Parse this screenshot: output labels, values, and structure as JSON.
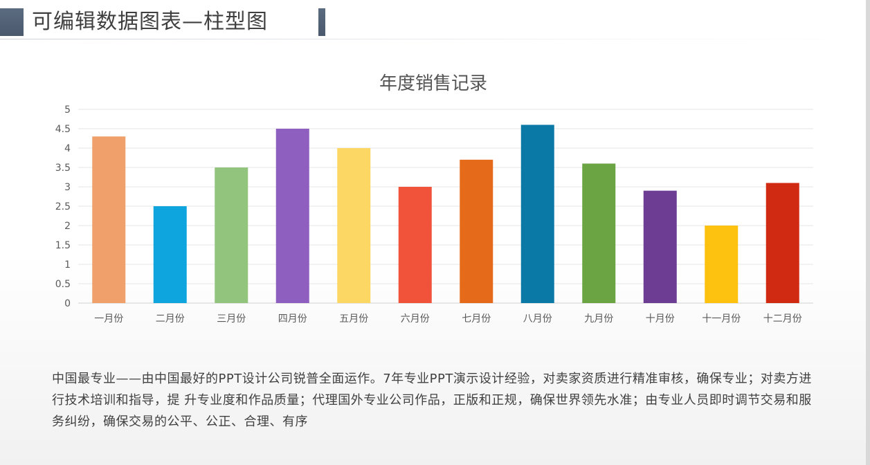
{
  "header": {
    "title": "可编辑数据图表—柱型图"
  },
  "chart_data": {
    "type": "bar",
    "title": "年度销售记录",
    "categories": [
      "一月份",
      "二月份",
      "三月份",
      "四月份",
      "五月份",
      "六月份",
      "七月份",
      "八月份",
      "九月份",
      "十月份",
      "十一月份",
      "十二月份"
    ],
    "values": [
      4.3,
      2.5,
      3.5,
      4.5,
      4.0,
      3.0,
      3.7,
      4.6,
      3.6,
      2.9,
      2.0,
      3.1
    ],
    "colors": [
      "#f0a06b",
      "#0ea5df",
      "#93c47d",
      "#8e5fbf",
      "#fdd764",
      "#f0533a",
      "#e56b1a",
      "#0b79a6",
      "#6ba443",
      "#6d3c93",
      "#fdc20f",
      "#d12a12"
    ],
    "yticks": [
      "0",
      "0.5",
      "1",
      "1.5",
      "2",
      "2.5",
      "3",
      "3.5",
      "4",
      "4.5",
      "5"
    ],
    "ylim": [
      0,
      5
    ],
    "grid": true,
    "xlabel": "",
    "ylabel": ""
  },
  "body": {
    "paragraph": "中国最专业——由中国最好的PPT设计公司锐普全面运作。7年专业PPT演示设计经验，对卖家资质进行精准审核，确保专业；对卖方进行技术培训和指导，提 升专业度和作品质量；代理国外专业公司作品，正版和正规，确保世界领先水准；由专业人员即时调节交易和服务纠纷，确保交易的公平、公正、合理、有序"
  }
}
